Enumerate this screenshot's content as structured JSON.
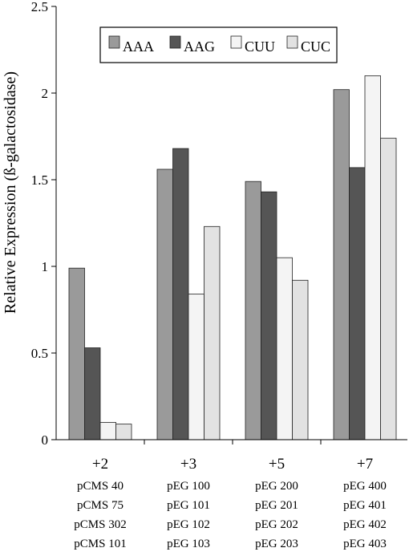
{
  "chart_data": {
    "type": "bar",
    "ylabel": "Relative Expression (ß-galactosidase)",
    "ylim": [
      0,
      2.5
    ],
    "yticks": [
      "0",
      "0.5",
      "1",
      "1.5",
      "2",
      "2.5"
    ],
    "categories": [
      "+2",
      "+3",
      "+5",
      "+7"
    ],
    "category_sublabels": [
      [
        "pCMS 40",
        "pCMS 75",
        "pCMS 302",
        "pCMS 101"
      ],
      [
        "pEG 100",
        "pEG 101",
        "pEG 102",
        "pEG 103"
      ],
      [
        "pEG 200",
        "pEG 201",
        "pEG 202",
        "pEG 203"
      ],
      [
        "pEG 400",
        "pEG 401",
        "pEG 402",
        "pEG 403"
      ]
    ],
    "series": [
      {
        "name": "AAA",
        "color": "#9a9a9a",
        "values": [
          0.99,
          1.56,
          1.49,
          2.02
        ]
      },
      {
        "name": "AAG",
        "color": "#555555",
        "values": [
          0.53,
          1.68,
          1.43,
          1.57
        ]
      },
      {
        "name": "CUU",
        "color": "#f4f4f4",
        "values": [
          0.1,
          0.84,
          1.05,
          2.1
        ]
      },
      {
        "name": "CUC",
        "color": "#e2e2e2",
        "values": [
          0.09,
          1.23,
          0.92,
          1.74
        ]
      }
    ],
    "legend_position": "top",
    "grid": false
  }
}
